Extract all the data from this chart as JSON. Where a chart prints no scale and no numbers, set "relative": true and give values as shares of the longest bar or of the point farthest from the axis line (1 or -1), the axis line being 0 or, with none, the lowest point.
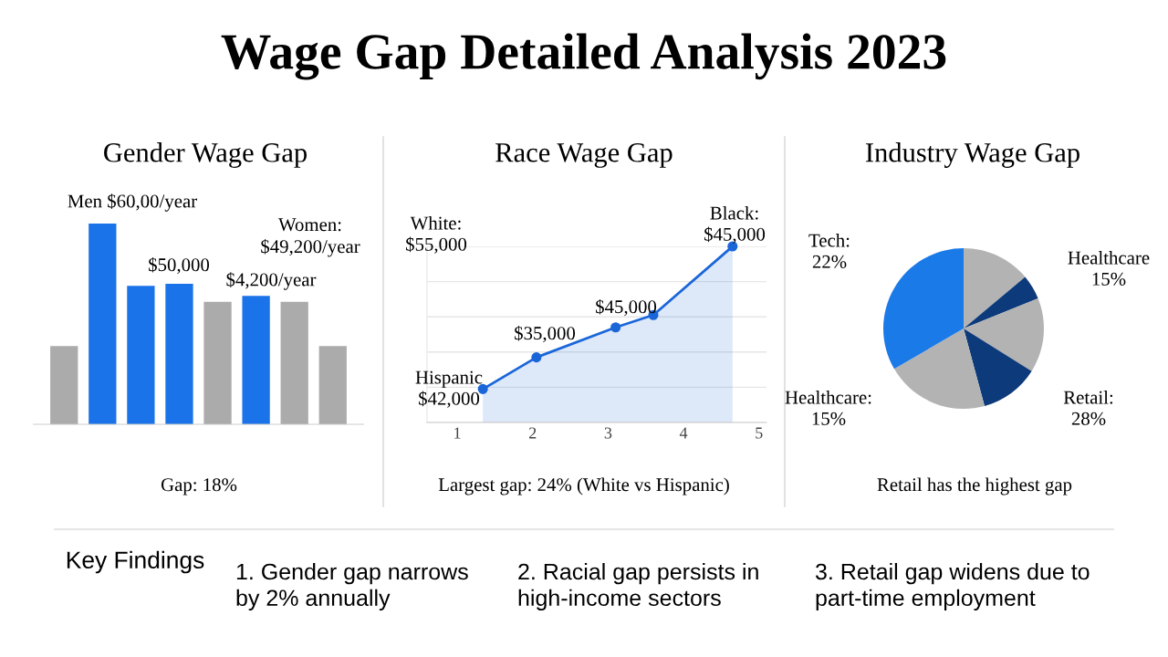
{
  "chart_data": [
    {
      "type": "other",
      "title": "Wage Gap Detailed Analysis 2023"
    },
    {
      "type": "bar",
      "title": "Gender Wage Gap",
      "relative": true,
      "categories": [
        null,
        null,
        null,
        null,
        null,
        null,
        null,
        null
      ],
      "values": [
        0.39,
        1,
        0.69,
        0.7,
        0.61,
        0.64,
        0.61,
        0.39
      ],
      "colors": [
        "#ababab",
        "#1a73e8",
        "#1a73e8",
        "#1a73e8",
        "#ababab",
        "#1a73e8",
        "#ababab",
        "#ababab"
      ],
      "annotations": [
        "Men $60,00/year",
        "$50,000",
        "$4,200/year",
        "Women:\n$49,200/year",
        "Gap: 18%"
      ]
    },
    {
      "type": "area",
      "title": "Race Wage Gap",
      "relative": true,
      "xlim": [
        0.6,
        5.1
      ],
      "xticks": [
        1,
        2,
        3,
        4,
        5
      ],
      "grid": "y",
      "marker": "circle",
      "series": [
        {
          "color": "#1a66d9",
          "x": [
            1.34,
            2.05,
            3.1,
            3.6,
            4.65
          ],
          "values": [
            0.19,
            0.37,
            0.54,
            0.61,
            1
          ]
        }
      ],
      "annotations": [
        "White:\n$55,000",
        "$35,000",
        "$45,000",
        "Black:\n$45,000",
        "Hispanic\n$42,000",
        "Largest gap: 24% (White vs Hispanic)"
      ]
    },
    {
      "type": "pie",
      "title": "Industry Wage Gap",
      "categories": [
        null,
        null,
        null,
        null,
        null,
        null
      ],
      "values": [
        13.9,
        5,
        15,
        11.9,
        20.8,
        33.4
      ],
      "colors": [
        "#b3b3b3",
        "#0d3a7a",
        "#b3b3b3",
        "#0d3a7a",
        "#b3b3b3",
        "#1a7ae8"
      ],
      "annotations": [
        "Tech:\n22%",
        "Healthcare\n15%",
        "Retail:\n28%",
        "Healthcare:\n15%",
        "Retail has the highest gap"
      ]
    },
    {
      "type": "other",
      "title": "Key Findings",
      "annotations": [
        "1. Gender gap narrows\nby 2% annually",
        "2. Racial gap persists in\nhigh-income sectors",
        "3. Retail gap widens due to\npart-time employment"
      ]
    }
  ]
}
